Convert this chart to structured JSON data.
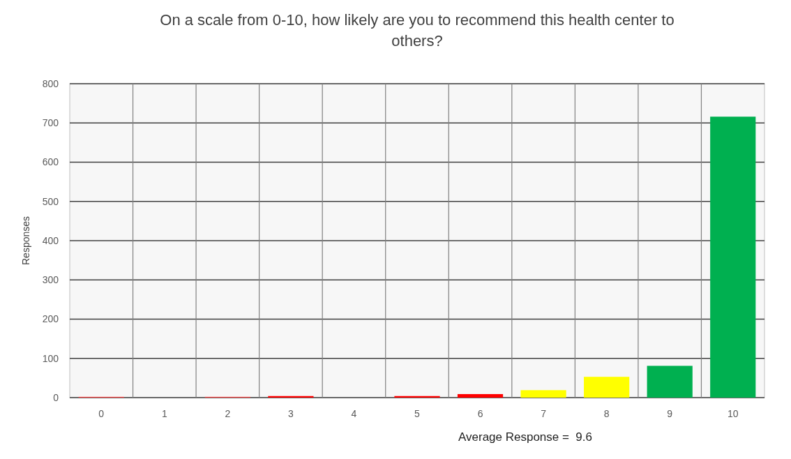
{
  "chart_data": {
    "type": "bar",
    "title": "On a scale from 0-10, how likely are you to recommend this health center to others?",
    "ylabel": "Responses",
    "categories": [
      "0",
      "1",
      "2",
      "3",
      "4",
      "5",
      "6",
      "7",
      "8",
      "9",
      "10"
    ],
    "values": [
      2,
      0,
      2,
      4,
      0,
      4,
      9,
      19,
      53,
      81,
      716
    ],
    "colors": [
      "#ff4040",
      "#ff0000",
      "#ff4040",
      "#ff0000",
      "#ff0000",
      "#ff0000",
      "#ff0000",
      "#ffff00",
      "#ffff00",
      "#00b050",
      "#00b050"
    ],
    "ylim": [
      0,
      800
    ],
    "yticks": [
      0,
      100,
      200,
      300,
      400,
      500,
      600,
      700,
      800
    ],
    "grid": true,
    "annotations": [
      "Average Response =  9.6"
    ]
  }
}
